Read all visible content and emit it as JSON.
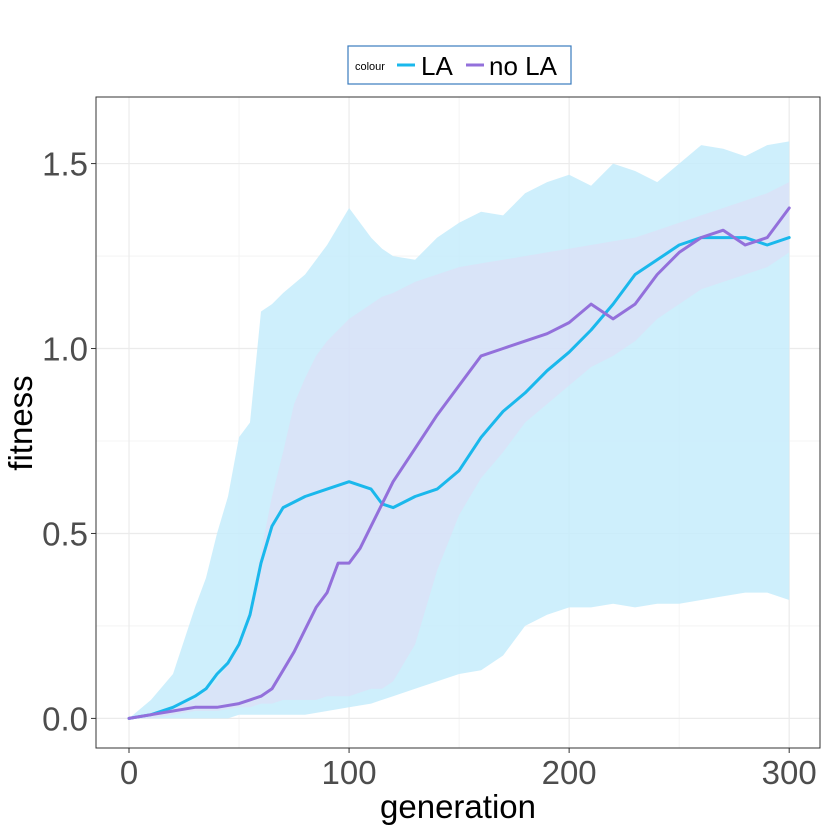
{
  "chart_data": {
    "type": "line",
    "title": "",
    "xlabel": "generation",
    "ylabel": "fitness",
    "xlim": [
      -15,
      314
    ],
    "ylim": [
      -0.08,
      1.68
    ],
    "x_ticks": [
      0,
      100,
      200,
      300
    ],
    "x_tick_labels": [
      "0",
      "100",
      "200",
      "300"
    ],
    "y_ticks": [
      0.0,
      0.5,
      1.0,
      1.5
    ],
    "y_tick_labels": [
      "0.0",
      "0.5",
      "1.0",
      "1.5"
    ],
    "grid": true,
    "legend": {
      "title": "colour",
      "position": "top",
      "entries": [
        {
          "label": "LA",
          "color": "#1ab8ec"
        },
        {
          "label": "no LA",
          "color": "#9370db"
        }
      ]
    },
    "series": [
      {
        "name": "LA",
        "color": "#1ab8ec",
        "band_color": "#c6ecfb",
        "x": [
          0,
          10,
          20,
          30,
          35,
          40,
          45,
          50,
          55,
          60,
          65,
          70,
          80,
          90,
          100,
          110,
          115,
          120,
          130,
          140,
          150,
          160,
          170,
          180,
          190,
          200,
          210,
          220,
          230,
          240,
          250,
          260,
          270,
          280,
          290,
          300
        ],
        "mean": [
          0.0,
          0.01,
          0.03,
          0.06,
          0.08,
          0.12,
          0.15,
          0.2,
          0.28,
          0.42,
          0.52,
          0.57,
          0.6,
          0.62,
          0.64,
          0.62,
          0.58,
          0.57,
          0.6,
          0.62,
          0.67,
          0.76,
          0.83,
          0.88,
          0.94,
          0.99,
          1.05,
          1.12,
          1.2,
          1.24,
          1.28,
          1.3,
          1.3,
          1.3,
          1.28,
          1.3
        ],
        "lower": [
          0.0,
          0.0,
          0.0,
          0.0,
          0.0,
          0.0,
          0.0,
          0.01,
          0.01,
          0.01,
          0.01,
          0.01,
          0.01,
          0.02,
          0.03,
          0.04,
          0.05,
          0.06,
          0.08,
          0.1,
          0.12,
          0.13,
          0.17,
          0.25,
          0.28,
          0.3,
          0.3,
          0.31,
          0.3,
          0.31,
          0.31,
          0.32,
          0.33,
          0.34,
          0.34,
          0.32
        ],
        "upper": [
          0.0,
          0.05,
          0.12,
          0.3,
          0.38,
          0.5,
          0.6,
          0.76,
          0.8,
          1.1,
          1.12,
          1.15,
          1.2,
          1.28,
          1.38,
          1.3,
          1.27,
          1.25,
          1.24,
          1.3,
          1.34,
          1.37,
          1.36,
          1.42,
          1.45,
          1.47,
          1.44,
          1.5,
          1.48,
          1.45,
          1.5,
          1.55,
          1.54,
          1.52,
          1.55,
          1.56
        ]
      },
      {
        "name": "no LA",
        "color": "#9370db",
        "band_color": "#e1dcf5",
        "x": [
          0,
          10,
          20,
          30,
          40,
          50,
          55,
          60,
          65,
          70,
          75,
          80,
          85,
          90,
          95,
          100,
          105,
          110,
          115,
          120,
          130,
          140,
          150,
          160,
          170,
          180,
          190,
          200,
          210,
          220,
          230,
          240,
          250,
          260,
          270,
          280,
          290,
          300
        ],
        "mean": [
          0.0,
          0.01,
          0.02,
          0.03,
          0.03,
          0.04,
          0.05,
          0.06,
          0.08,
          0.13,
          0.18,
          0.24,
          0.3,
          0.34,
          0.42,
          0.42,
          0.46,
          0.52,
          0.58,
          0.64,
          0.73,
          0.82,
          0.9,
          0.98,
          1.0,
          1.02,
          1.04,
          1.07,
          1.12,
          1.08,
          1.12,
          1.2,
          1.26,
          1.3,
          1.32,
          1.28,
          1.3,
          1.38
        ],
        "lower": [
          0.0,
          0.0,
          0.01,
          0.02,
          0.02,
          0.03,
          0.03,
          0.04,
          0.04,
          0.05,
          0.05,
          0.05,
          0.05,
          0.06,
          0.06,
          0.06,
          0.07,
          0.08,
          0.08,
          0.1,
          0.2,
          0.4,
          0.55,
          0.65,
          0.72,
          0.8,
          0.85,
          0.9,
          0.95,
          0.98,
          1.02,
          1.08,
          1.12,
          1.16,
          1.18,
          1.2,
          1.22,
          1.26
        ],
        "upper": [
          0.0,
          0.01,
          0.03,
          0.05,
          0.1,
          0.2,
          0.3,
          0.45,
          0.6,
          0.72,
          0.85,
          0.92,
          0.98,
          1.02,
          1.05,
          1.08,
          1.1,
          1.12,
          1.14,
          1.15,
          1.18,
          1.2,
          1.22,
          1.23,
          1.24,
          1.25,
          1.26,
          1.27,
          1.28,
          1.29,
          1.3,
          1.32,
          1.34,
          1.36,
          1.38,
          1.4,
          1.42,
          1.45
        ]
      }
    ]
  }
}
